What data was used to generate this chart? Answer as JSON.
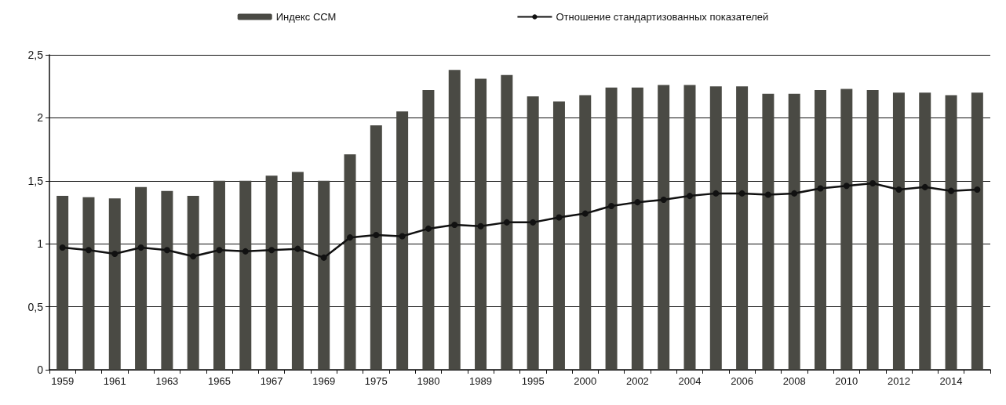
{
  "chart_data": {
    "type": "bar",
    "categories": [
      "1959",
      null,
      "1961",
      null,
      "1963",
      null,
      "1965",
      null,
      "1967",
      null,
      "1969",
      null,
      "1975",
      null,
      "1980",
      null,
      "1989",
      null,
      "1995",
      null,
      "2000",
      null,
      "2002",
      null,
      "2004",
      null,
      "2006",
      null,
      "2008",
      null,
      "2010",
      null,
      "2012",
      null,
      "2014",
      null
    ],
    "series": [
      {
        "name": "Индекс ССМ",
        "color": "#4a4a44",
        "values": [
          1.38,
          1.37,
          1.36,
          1.45,
          1.42,
          1.38,
          1.5,
          1.5,
          1.54,
          1.57,
          1.5,
          1.71,
          1.94,
          2.05,
          2.22,
          2.38,
          2.31,
          2.34,
          2.17,
          2.13,
          2.18,
          2.24,
          2.24,
          2.26,
          2.26,
          2.25,
          2.25,
          2.19,
          2.19,
          2.22,
          2.23,
          2.22,
          2.2,
          2.2,
          2.18,
          2.2
        ]
      },
      {
        "name": "Отношение стандартизованных показателей",
        "type": "line",
        "color": "#111111",
        "values": [
          0.97,
          0.95,
          0.92,
          0.97,
          0.95,
          0.9,
          0.95,
          0.94,
          0.95,
          0.96,
          0.89,
          1.05,
          1.07,
          1.06,
          1.12,
          1.15,
          1.14,
          1.17,
          1.17,
          1.21,
          1.24,
          1.3,
          1.33,
          1.35,
          1.38,
          1.4,
          1.4,
          1.39,
          1.4,
          1.44,
          1.46,
          1.48,
          1.43,
          1.45,
          1.42,
          1.43
        ]
      }
    ],
    "ylim": [
      0,
      2.5
    ],
    "yticks": [
      0,
      {
        "value": 0.5,
        "label": "0,5"
      },
      1,
      {
        "value": 1.5,
        "label": "1,5"
      },
      2,
      {
        "value": 2.5,
        "label": "2,5"
      }
    ],
    "grid": "y",
    "legend": "top",
    "marker": "circle",
    "line_style": "solid"
  }
}
